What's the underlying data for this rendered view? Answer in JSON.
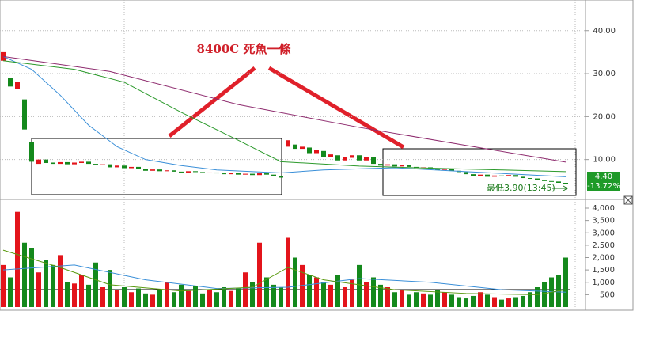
{
  "chart_data": [
    {
      "type": "candlestick",
      "title": "8400C 死魚一條",
      "open": [
        33,
        29,
        26.5,
        24,
        14,
        9,
        10,
        9.3,
        9.0,
        9.4,
        8.9,
        9.2,
        9.5,
        9.0,
        8.7,
        8.9,
        8.2,
        8.6,
        8.0,
        8.3,
        7.8,
        7.4,
        7.7,
        7.3,
        7.5,
        7.2,
        7.0,
        7.3,
        7.1,
        6.9,
        7.0,
        6.8,
        6.6,
        6.9,
        6.5,
        6.7,
        6.4,
        6.8,
        6.5,
        6.2,
        13.0,
        13.5,
        12.5,
        12.8,
        11.5,
        12,
        10.5,
        11.0,
        9.8,
        10.4,
        11.0,
        9.8,
        10.5,
        9.0,
        8.6,
        8.9,
        8.4,
        8.7,
        8.3,
        8.0,
        8.2,
        7.8,
        7.6,
        7.9,
        7.4,
        7.1,
        6.6,
        6.2,
        6.5,
        6.0,
        6.3,
        6.1,
        6.4,
        6.0,
        5.7,
        5.6,
        5.2,
        5.0,
        4.9,
        4.6
      ],
      "close": [
        35,
        27,
        28,
        17,
        9.5,
        10,
        9.2,
        9.0,
        9.4,
        8.9,
        9.3,
        9.5,
        9.0,
        8.7,
        8.9,
        8.2,
        8.6,
        8.0,
        8.3,
        7.8,
        7.4,
        7.7,
        7.3,
        7.5,
        7.2,
        7.0,
        7.3,
        7.1,
        6.9,
        7.0,
        6.8,
        6.6,
        6.9,
        6.5,
        6.7,
        6.4,
        6.8,
        6.5,
        6.2,
        5.8,
        14.5,
        12.5,
        13,
        11.5,
        12.2,
        10.5,
        11.2,
        9.8,
        10.5,
        11.0,
        9.8,
        10.6,
        9.0,
        8.6,
        8.9,
        8.4,
        8.7,
        8.3,
        8.0,
        8.2,
        7.8,
        7.6,
        7.9,
        7.4,
        7.1,
        6.6,
        6.2,
        6.5,
        6.0,
        6.3,
        6.1,
        6.4,
        6.0,
        5.7,
        5.6,
        5.2,
        5.0,
        4.9,
        4.6,
        4.4
      ],
      "up_color": "#e3141b",
      "down_color": "#14891c",
      "ylim": [
        1.1,
        46.4
      ],
      "yticks": [
        {
          "value": 10,
          "label": "10.00"
        },
        {
          "value": 20,
          "label": "20.00"
        },
        {
          "value": 30,
          "label": "30.00"
        },
        {
          "value": 40,
          "label": "40.00"
        }
      ],
      "grid": true,
      "lines": [
        {
          "color": "#3a8fd8",
          "x": [
            0,
            4,
            8,
            12,
            16,
            20,
            25,
            30,
            39,
            45,
            55,
            65,
            79
          ],
          "values": [
            34,
            31,
            25,
            18,
            13,
            10,
            8.6,
            7.6,
            6.9,
            7.6,
            8.1,
            7.2,
            6.0
          ]
        },
        {
          "color": "#2c9a2c",
          "x": [
            0,
            10,
            17,
            25,
            33,
            39,
            50,
            60,
            70,
            79
          ],
          "values": [
            33,
            31,
            28,
            21,
            14.5,
            9.5,
            8.5,
            8,
            7.6,
            7.2
          ]
        },
        {
          "color": "#8e2b6e",
          "x": [
            0,
            15,
            33,
            50,
            65,
            79
          ],
          "values": [
            34,
            30.5,
            22.8,
            17.5,
            13.3,
            9.4
          ]
        }
      ],
      "last_price_label": "4.40",
      "change_label": "-13.72%",
      "low_label": "最低3.90(13:45)"
    },
    {
      "type": "bar",
      "values": [
        1700,
        1200,
        3850,
        2600,
        2400,
        1400,
        1900,
        1700,
        2100,
        1000,
        950,
        1300,
        900,
        1800,
        800,
        1500,
        700,
        800,
        600,
        750,
        550,
        500,
        700,
        1000,
        600,
        900,
        650,
        850,
        550,
        700,
        600,
        800,
        650,
        750,
        1400,
        1000,
        2600,
        1200,
        900,
        800,
        2800,
        2000,
        1700,
        1300,
        1200,
        1000,
        900,
        1300,
        800,
        1100,
        1700,
        1000,
        1200,
        900,
        800,
        600,
        700,
        500,
        600,
        550,
        500,
        700,
        600,
        500,
        400,
        350,
        450,
        600,
        500,
        400,
        300,
        350,
        400,
        450,
        600,
        800,
        1000,
        1200,
        1300,
        2000
      ],
      "ylim": [
        0,
        4160
      ],
      "yticks": [
        {
          "value": 500,
          "label": "500"
        },
        {
          "value": 1000,
          "label": "1,000"
        },
        {
          "value": 1500,
          "label": "1,500"
        },
        {
          "value": 2000,
          "label": "2,000"
        },
        {
          "value": 2500,
          "label": "2,500"
        },
        {
          "value": 3000,
          "label": "3,000"
        },
        {
          "value": 3500,
          "label": "3,500"
        },
        {
          "value": 4000,
          "label": "4,000"
        }
      ],
      "lines": [
        {
          "color": "#3a8fd8",
          "x": [
            0,
            10,
            20,
            30,
            40,
            50,
            60,
            70,
            79
          ],
          "values": [
            1500,
            1700,
            1100,
            750,
            800,
            1150,
            1000,
            700,
            600
          ]
        },
        {
          "color": "#5a9a10",
          "x": [
            0,
            8,
            15,
            25,
            35,
            40,
            45,
            55,
            65,
            75,
            79
          ],
          "values": [
            2300,
            1600,
            900,
            650,
            800,
            1600,
            1100,
            700,
            550,
            500,
            700
          ]
        }
      ]
    }
  ]
}
